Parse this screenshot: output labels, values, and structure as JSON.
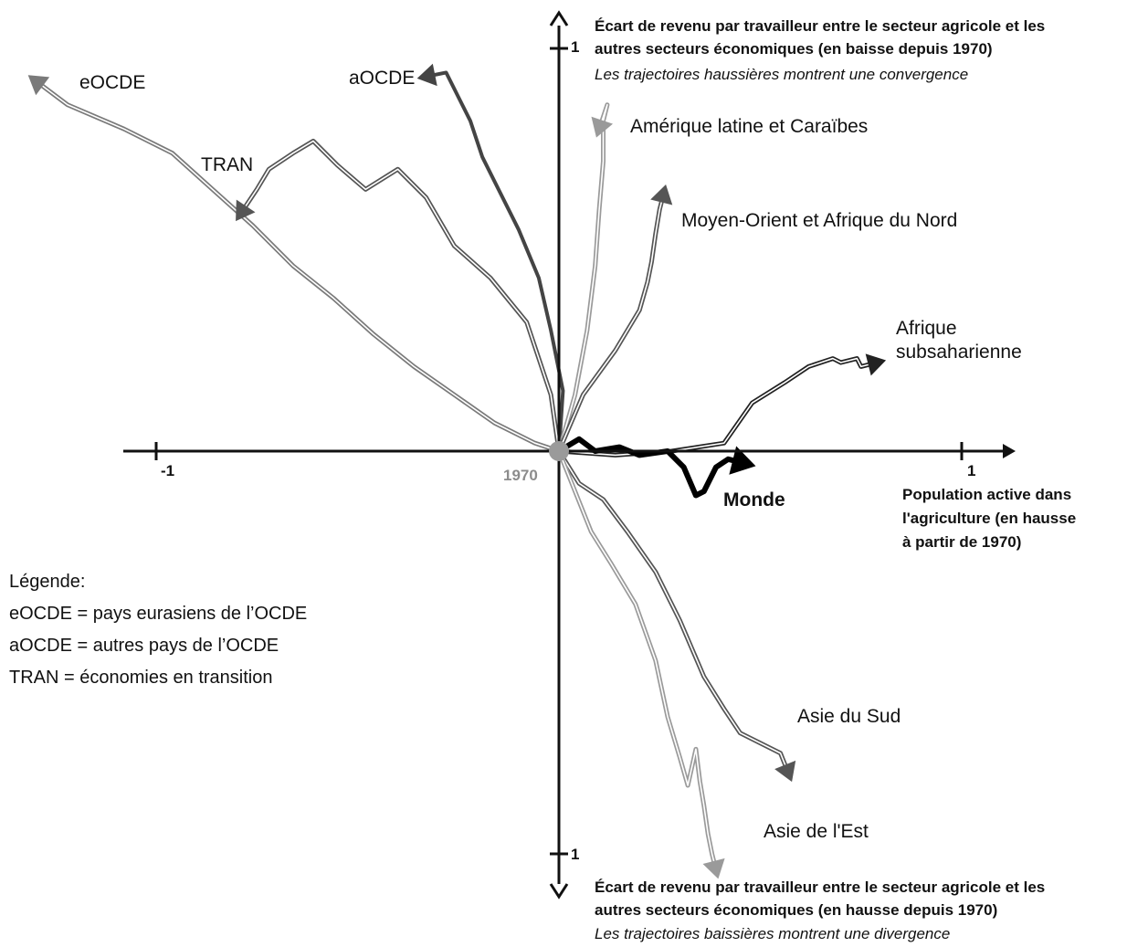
{
  "chart_data": {
    "type": "line",
    "origin_label": "1970",
    "x_ticks": {
      "neg": "-1",
      "pos": "1"
    },
    "y_ticks": {
      "top": "1",
      "bottom": "1"
    },
    "x_axis_label": [
      "Population active dans",
      "l'agriculture (en hausse",
      "à partir de 1970)"
    ],
    "y_axis_top": {
      "title": [
        "Écart de revenu par travailleur entre le secteur agricole et les",
        "autres secteurs économiques (en baisse depuis 1970)"
      ],
      "note": "Les trajectoires haussières montrent une convergence"
    },
    "y_axis_bottom": {
      "title": [
        "Écart de revenu par travailleur entre le secteur agricole et les",
        "autres secteurs économiques (en hausse depuis 1970)"
      ],
      "note": "Les trajectoires baissières montrent une divergence"
    },
    "legend": {
      "title": "Légende:",
      "items": [
        "eOCDE = pays eurasiens de l’OCDE",
        "aOCDE = autres pays de l’OCDE",
        "TRAN = économies en transition"
      ]
    },
    "series": [
      {
        "name": "eOCDE",
        "style": "double",
        "color": "#7a7a7a",
        "points": [
          [
            0,
            0
          ],
          [
            -0.06,
            0.02
          ],
          [
            -0.16,
            0.07
          ],
          [
            -0.26,
            0.14
          ],
          [
            -0.36,
            0.21
          ],
          [
            -0.46,
            0.29
          ],
          [
            -0.56,
            0.38
          ],
          [
            -0.66,
            0.46
          ],
          [
            -0.76,
            0.56
          ],
          [
            -0.86,
            0.65
          ],
          [
            -0.96,
            0.74
          ],
          [
            -1.08,
            0.8
          ],
          [
            -1.22,
            0.86
          ],
          [
            -1.3,
            0.92
          ]
        ]
      },
      {
        "name": "aOCDE",
        "style": "thick",
        "color": "#444444",
        "points": [
          [
            0,
            0
          ],
          [
            0.01,
            0.15
          ],
          [
            -0.02,
            0.3
          ],
          [
            -0.05,
            0.43
          ],
          [
            -0.1,
            0.55
          ],
          [
            -0.15,
            0.65
          ],
          [
            -0.19,
            0.73
          ],
          [
            -0.22,
            0.82
          ],
          [
            -0.28,
            0.94
          ],
          [
            -0.33,
            0.93
          ]
        ]
      },
      {
        "name": "TRAN",
        "style": "double",
        "color": "#555555",
        "points": [
          [
            0,
            0
          ],
          [
            -0.02,
            0.14
          ],
          [
            -0.08,
            0.32
          ],
          [
            -0.17,
            0.43
          ],
          [
            -0.26,
            0.51
          ],
          [
            -0.33,
            0.63
          ],
          [
            -0.4,
            0.7
          ],
          [
            -0.48,
            0.65
          ],
          [
            -0.55,
            0.71
          ],
          [
            -0.61,
            0.77
          ],
          [
            -0.66,
            0.74
          ],
          [
            -0.72,
            0.7
          ],
          [
            -0.75,
            0.65
          ],
          [
            -0.79,
            0.59
          ]
        ]
      },
      {
        "name": "Amérique latine et Caraïbes",
        "style": "double",
        "color": "#9a9a9a",
        "points": [
          [
            0,
            0
          ],
          [
            0.04,
            0.14
          ],
          [
            0.07,
            0.3
          ],
          [
            0.09,
            0.46
          ],
          [
            0.1,
            0.6
          ],
          [
            0.11,
            0.72
          ],
          [
            0.11,
            0.82
          ],
          [
            0.12,
            0.86
          ],
          [
            0.1,
            0.8
          ]
        ]
      },
      {
        "name": "Moyen-Orient et Afrique du Nord",
        "style": "double",
        "color": "#555555",
        "points": [
          [
            0,
            0
          ],
          [
            0.06,
            0.14
          ],
          [
            0.14,
            0.25
          ],
          [
            0.2,
            0.35
          ],
          [
            0.22,
            0.42
          ],
          [
            0.23,
            0.47
          ],
          [
            0.24,
            0.54
          ],
          [
            0.25,
            0.6
          ],
          [
            0.26,
            0.64
          ]
        ]
      },
      {
        "name": "Afrique subsaharienne",
        "style": "double",
        "color": "#222222",
        "points": [
          [
            0,
            0
          ],
          [
            0.14,
            -0.01
          ],
          [
            0.28,
            0
          ],
          [
            0.41,
            0.02
          ],
          [
            0.48,
            0.12
          ],
          [
            0.56,
            0.17
          ],
          [
            0.62,
            0.21
          ],
          [
            0.68,
            0.23
          ],
          [
            0.7,
            0.22
          ],
          [
            0.74,
            0.23
          ],
          [
            0.75,
            0.21
          ],
          [
            0.79,
            0.22
          ]
        ]
      },
      {
        "name": "Monde",
        "style": "thickest",
        "color": "#000000",
        "points": [
          [
            0,
            0
          ],
          [
            0.05,
            0.03
          ],
          [
            0.09,
            0
          ],
          [
            0.15,
            0.01
          ],
          [
            0.2,
            -0.01
          ],
          [
            0.27,
            0
          ],
          [
            0.31,
            -0.04
          ],
          [
            0.34,
            -0.11
          ],
          [
            0.36,
            -0.1
          ],
          [
            0.39,
            -0.04
          ],
          [
            0.42,
            -0.02
          ],
          [
            0.46,
            -0.03
          ]
        ]
      },
      {
        "name": "Asie du Sud",
        "style": "double",
        "color": "#555555",
        "points": [
          [
            0,
            0
          ],
          [
            0.05,
            -0.08
          ],
          [
            0.11,
            -0.12
          ],
          [
            0.17,
            -0.2
          ],
          [
            0.24,
            -0.3
          ],
          [
            0.3,
            -0.42
          ],
          [
            0.36,
            -0.56
          ],
          [
            0.41,
            -0.64
          ],
          [
            0.45,
            -0.7
          ],
          [
            0.55,
            -0.75
          ],
          [
            0.57,
            -0.8
          ]
        ]
      },
      {
        "name": "Asie de l'Est",
        "style": "double",
        "color": "#9a9a9a",
        "points": [
          [
            0,
            0
          ],
          [
            0.04,
            -0.1
          ],
          [
            0.08,
            -0.2
          ],
          [
            0.13,
            -0.28
          ],
          [
            0.19,
            -0.38
          ],
          [
            0.24,
            -0.52
          ],
          [
            0.27,
            -0.66
          ],
          [
            0.3,
            -0.76
          ],
          [
            0.32,
            -0.83
          ],
          [
            0.34,
            -0.74
          ],
          [
            0.35,
            -0.82
          ],
          [
            0.36,
            -0.88
          ],
          [
            0.37,
            -0.95
          ],
          [
            0.38,
            -1.0
          ],
          [
            0.39,
            -1.04
          ]
        ]
      }
    ]
  }
}
